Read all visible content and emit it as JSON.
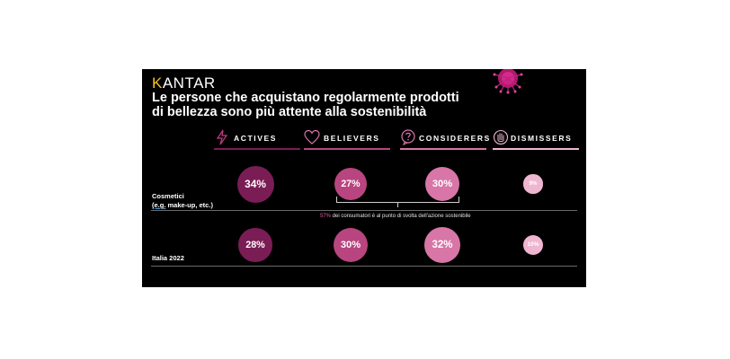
{
  "brand": {
    "first_letter": "K",
    "rest": "ANTAR"
  },
  "title_line1": "Le persone che acquistano regolarmente prodotti",
  "title_line2": "di bellezza sono più attente alla sostenibilità",
  "colors": {
    "actives": "#7a1d55",
    "believers": "#b8457f",
    "considerers": "#d776a7",
    "dismissers": "#efb6d1",
    "accent": "#e05fa0"
  },
  "note": {
    "pct": "57%",
    "text": " dei consumatori è al punto di svolta dell'azione sostenibile"
  },
  "chart_data": {
    "type": "bubble-table",
    "title": "Le persone che acquistano regolarmente prodotti di bellezza sono più attente alla sostenibilità",
    "columns": [
      {
        "key": "actives",
        "label": "ACTIVES",
        "icon": "lightning-icon"
      },
      {
        "key": "believers",
        "label": "BELIEVERS",
        "icon": "heart-icon"
      },
      {
        "key": "considerers",
        "label": "CONSIDERERS",
        "icon": "question-bubble-icon"
      },
      {
        "key": "dismissers",
        "label": "DISMISSERS",
        "icon": "hand-stop-icon"
      }
    ],
    "rows": [
      {
        "label_line1": "Cosmetici",
        "label_abbr": "(e.g.",
        "label_rest": " make-up, etc.)",
        "values": [
          34,
          27,
          30,
          9
        ],
        "labels": [
          "34%",
          "27%",
          "30%",
          "9%"
        ]
      },
      {
        "label_line1": "Italia 2022",
        "values": [
          28,
          30,
          32,
          10
        ],
        "labels": [
          "28%",
          "30%",
          "32%",
          "10%"
        ]
      }
    ]
  }
}
